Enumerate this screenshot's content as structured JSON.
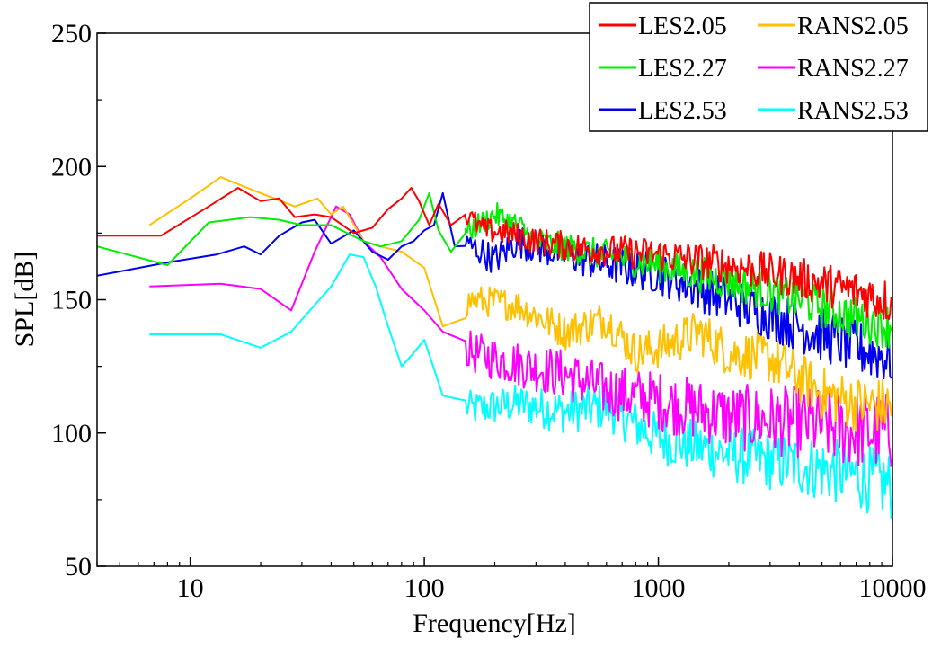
{
  "chart_data": {
    "type": "line",
    "title": "",
    "xlabel": "Frequency[Hz]",
    "ylabel": "SPL[dB]",
    "xscale": "log",
    "xlim": [
      4,
      10000
    ],
    "ylim": [
      50,
      250
    ],
    "xticks": [
      10,
      100,
      1000,
      10000
    ],
    "xtick_labels": [
      "10",
      "100",
      "1000",
      "10000"
    ],
    "yticks": [
      50,
      100,
      150,
      200,
      250
    ],
    "ytick_labels": [
      "50",
      "100",
      "150",
      "200",
      "250"
    ],
    "grid": false,
    "legend_position": "top-right",
    "legend_entries": [
      "LES2.05",
      "RANS2.05",
      "LES2.27",
      "RANS2.27",
      "LES2.53",
      "RANS2.53"
    ],
    "series": [
      {
        "name": "LES2.05",
        "color": "#ff0000",
        "noise": 4,
        "x": [
          4,
          7.5,
          12,
          16,
          20,
          24,
          28,
          34,
          40,
          50,
          60,
          70,
          80,
          88,
          95,
          105,
          115,
          130,
          150,
          180,
          230,
          300,
          500,
          1000,
          2000,
          4000,
          7000,
          10000
        ],
        "y": [
          174,
          174,
          185,
          192,
          187,
          188,
          181,
          182,
          181,
          175,
          177,
          184,
          188,
          192,
          187,
          178,
          186,
          178,
          182,
          176,
          175,
          172,
          169,
          167,
          163,
          158,
          153,
          149
        ]
      },
      {
        "name": "RANS2.05",
        "color": "#ffc000",
        "noise": 5,
        "x": [
          6.7,
          10,
          13.5,
          20,
          28,
          35,
          40,
          45,
          55,
          65,
          80,
          100,
          120,
          160,
          250,
          400,
          600,
          800,
          1000,
          1500,
          2000,
          3000,
          5000,
          7000,
          10000
        ],
        "y": [
          178,
          188,
          196,
          190,
          185,
          188,
          182,
          185,
          172,
          170,
          168,
          162,
          140,
          150,
          148,
          138,
          143,
          130,
          132,
          138,
          130,
          128,
          115,
          111,
          110
        ]
      },
      {
        "name": "LES2.27",
        "color": "#00ee00",
        "noise": 4,
        "x": [
          4,
          8,
          12,
          18,
          24,
          30,
          40,
          55,
          65,
          80,
          95,
          105,
          115,
          130,
          150,
          200,
          250,
          300,
          500,
          1000,
          2000,
          4000,
          7000,
          10000
        ],
        "y": [
          170,
          163,
          179,
          181,
          180,
          178,
          178,
          172,
          170,
          172,
          180,
          190,
          176,
          168,
          175,
          182,
          178,
          172,
          168,
          163,
          157,
          150,
          143,
          140
        ]
      },
      {
        "name": "RANS2.27",
        "color": "#ff00ff",
        "noise": 7,
        "x": [
          6.7,
          13.5,
          20,
          27,
          34,
          42,
          48,
          55,
          65,
          80,
          100,
          120,
          160,
          250,
          400,
          600,
          1000,
          2000,
          4000,
          7000,
          10000
        ],
        "y": [
          155,
          156,
          154,
          146,
          168,
          185,
          182,
          172,
          166,
          154,
          146,
          138,
          130,
          126,
          122,
          116,
          112,
          106,
          104,
          101,
          100
        ]
      },
      {
        "name": "LES2.53",
        "color": "#0000ee",
        "noise": 5,
        "x": [
          4,
          8,
          13,
          17,
          20,
          24,
          30,
          34,
          40,
          50,
          60,
          70,
          80,
          90,
          100,
          110,
          120,
          135,
          160,
          200,
          250,
          300,
          500,
          1000,
          2000,
          4000,
          7000,
          10000
        ],
        "y": [
          159,
          164,
          167,
          170,
          167,
          174,
          179,
          180,
          171,
          176,
          168,
          165,
          170,
          172,
          176,
          178,
          190,
          170,
          170,
          165,
          172,
          170,
          165,
          160,
          150,
          140,
          132,
          128
        ]
      },
      {
        "name": "RANS2.53",
        "color": "#00ffff",
        "noise": 6,
        "x": [
          6.7,
          13.5,
          20,
          27,
          34,
          40,
          48,
          55,
          62,
          70,
          80,
          90,
          100,
          120,
          160,
          250,
          400,
          600,
          1000,
          2000,
          4000,
          7000,
          10000
        ],
        "y": [
          137,
          137,
          132,
          138,
          148,
          155,
          167,
          166,
          155,
          140,
          125,
          130,
          135,
          114,
          109,
          111,
          108,
          110,
          98,
          92,
          88,
          84,
          80
        ]
      }
    ]
  }
}
